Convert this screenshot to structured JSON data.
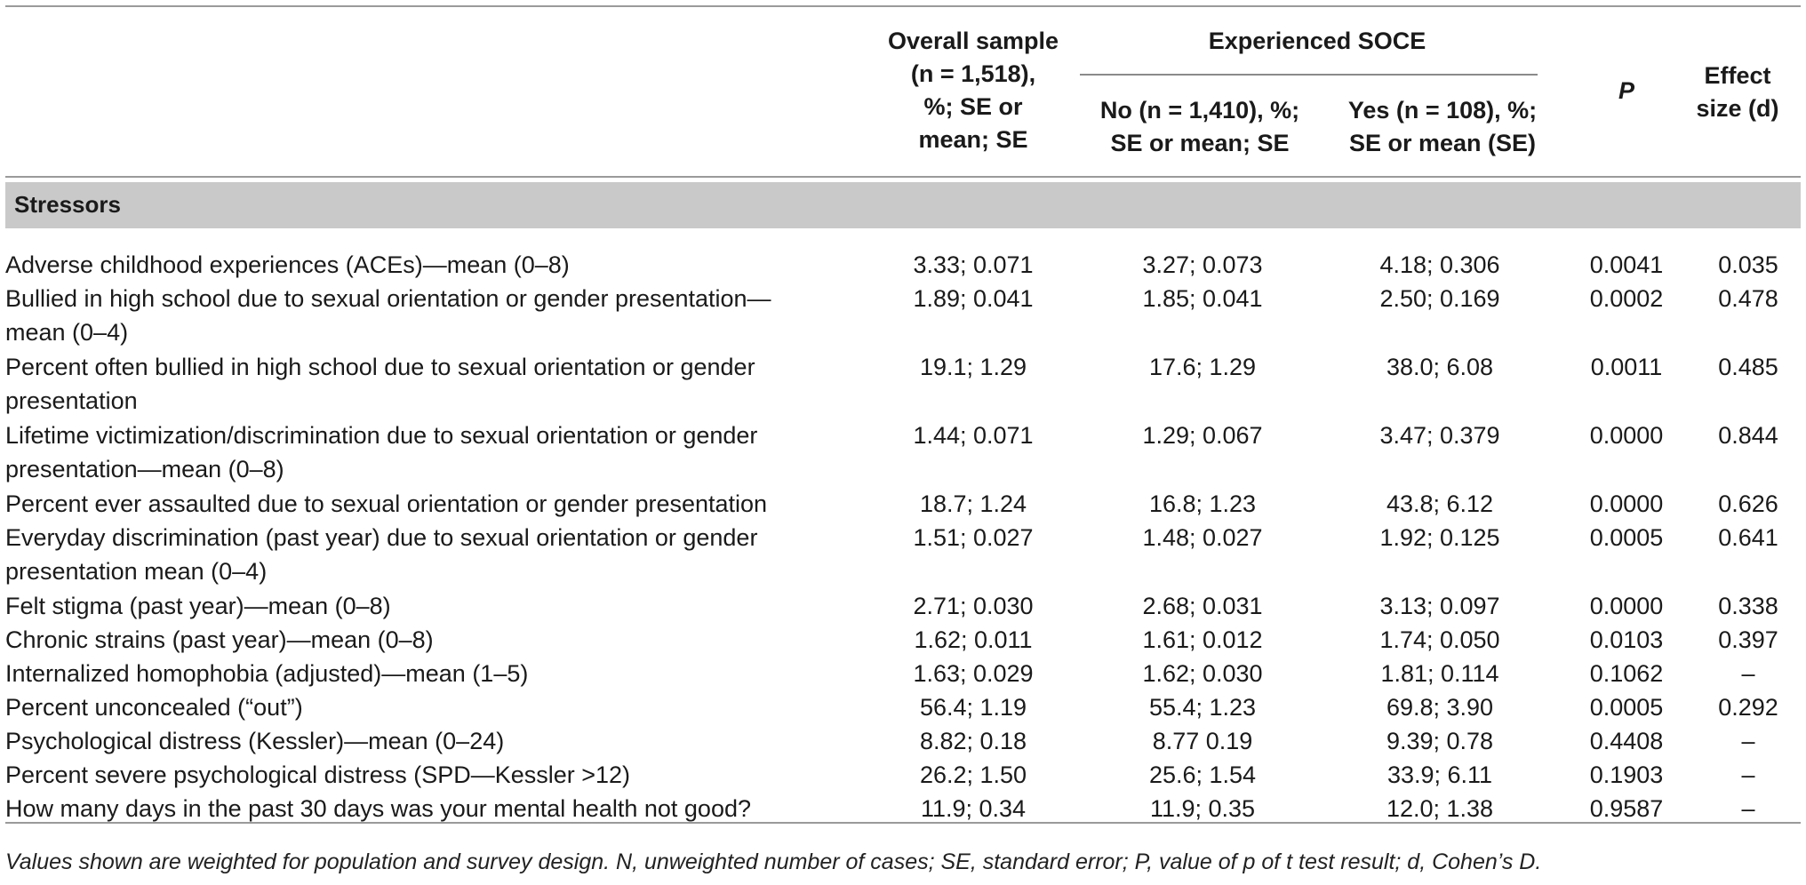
{
  "header": {
    "overall": [
      "Overall sample",
      "(n = 1,518),",
      "%; SE or",
      "mean; SE"
    ],
    "experienced": "Experienced SOCE",
    "no": [
      "No (n = 1,410), %;",
      "SE or mean; SE"
    ],
    "yes": [
      "Yes (n = 108), %;",
      "SE or mean (SE)"
    ],
    "p": "P",
    "effect": [
      "Effect",
      "size (d)"
    ]
  },
  "section": "Stressors",
  "rows": [
    {
      "label": "Adverse childhood experiences (ACEs)—mean (0–8)",
      "overall": "3.33; 0.071",
      "no": "3.27; 0.073",
      "yes": "4.18; 0.306",
      "p": "0.0041",
      "d": "0.035"
    },
    {
      "label": "Bullied in high school due to sexual orientation or gender presentation—mean (0–4)",
      "overall": "1.89; 0.041",
      "no": "1.85; 0.041",
      "yes": "2.50; 0.169",
      "p": "0.0002",
      "d": "0.478"
    },
    {
      "label": "Percent often bullied in high school due to sexual orientation or gender presentation",
      "overall": "19.1; 1.29",
      "no": "17.6; 1.29",
      "yes": "38.0; 6.08",
      "p": "0.0011",
      "d": "0.485"
    },
    {
      "label": "Lifetime victimization/discrimination due to sexual orientation or gender presentation—mean (0–8)",
      "overall": "1.44; 0.071",
      "no": "1.29; 0.067",
      "yes": "3.47; 0.379",
      "p": "0.0000",
      "d": "0.844"
    },
    {
      "label": "Percent ever assaulted due to sexual orientation or gender presentation",
      "overall": "18.7; 1.24",
      "no": "16.8; 1.23",
      "yes": "43.8; 6.12",
      "p": "0.0000",
      "d": "0.626"
    },
    {
      "label": "Everyday discrimination (past year) due to sexual orientation or gender presentation mean (0–4)",
      "overall": "1.51; 0.027",
      "no": "1.48; 0.027",
      "yes": "1.92; 0.125",
      "p": "0.0005",
      "d": "0.641"
    },
    {
      "label": "Felt stigma (past year)—mean (0–8)",
      "overall": "2.71; 0.030",
      "no": "2.68; 0.031",
      "yes": "3.13; 0.097",
      "p": "0.0000",
      "d": "0.338"
    },
    {
      "label": "Chronic strains (past year)—mean (0–8)",
      "overall": "1.62; 0.011",
      "no": "1.61; 0.012",
      "yes": "1.74; 0.050",
      "p": "0.0103",
      "d": "0.397"
    },
    {
      "label": "Internalized homophobia (adjusted)—mean (1–5)",
      "overall": "1.63; 0.029",
      "no": "1.62; 0.030",
      "yes": "1.81; 0.114",
      "p": "0.1062",
      "d": "–"
    },
    {
      "label": "Percent unconcealed (“out”)",
      "overall": "56.4; 1.19",
      "no": "55.4; 1.23",
      "yes": "69.8; 3.90",
      "p": "0.0005",
      "d": "0.292"
    },
    {
      "label": "Psychological distress (Kessler)—mean (0–24)",
      "overall": "8.82; 0.18",
      "no": "8.77 0.19",
      "yes": "9.39; 0.78",
      "p": "0.4408",
      "d": "–"
    },
    {
      "label": "Percent severe psychological distress (SPD—Kessler >12)",
      "overall": "26.2; 1.50",
      "no": "25.6; 1.54",
      "yes": "33.9; 6.11",
      "p": "0.1903",
      "d": "–"
    },
    {
      "label": "How many days in the past 30 days was your mental health not good?",
      "overall": "11.9; 0.34",
      "no": "11.9; 0.35",
      "yes": "12.0; 1.38",
      "p": "0.9587",
      "d": "–"
    }
  ],
  "footnote": "Values shown are weighted for population and survey design. N, unweighted number of cases; SE, standard error; P, value of p of t test result; d, Cohen’s D."
}
